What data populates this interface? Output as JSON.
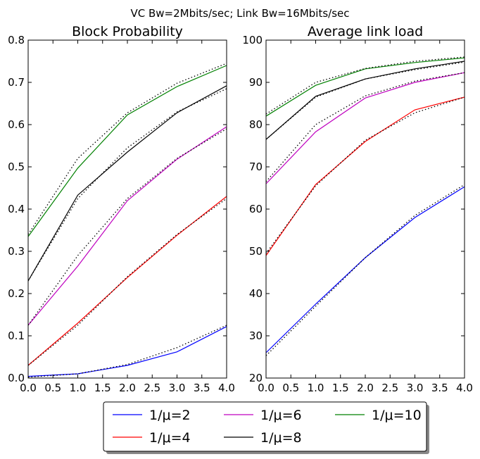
{
  "suptitle": "VC Bw=2Mbits/sec; Link Bw=16Mbits/sec",
  "legend": {
    "placement": "bottom-center",
    "entries": [
      {
        "label": "1/μ=2",
        "color": "#0000ff"
      },
      {
        "label": "1/μ=4",
        "color": "#ff0000"
      },
      {
        "label": "1/μ=6",
        "color": "#bf00bf"
      },
      {
        "label": "1/μ=8",
        "color": "#000000"
      },
      {
        "label": "1/μ=10",
        "color": "#008000"
      }
    ]
  },
  "chart_data": [
    {
      "type": "line",
      "title": "Block Probability",
      "xlabel": "",
      "ylabel": "",
      "xlim": [
        0,
        4
      ],
      "ylim": [
        0,
        0.8
      ],
      "xticks": [
        "0.0",
        "0.5",
        "1.0",
        "1.5",
        "2.0",
        "2.5",
        "3.0",
        "3.5",
        "4.0"
      ],
      "yticks": [
        "0.0",
        "0.1",
        "0.2",
        "0.3",
        "0.4",
        "0.5",
        "0.6",
        "0.7",
        "0.8"
      ],
      "grid": false,
      "x": [
        0,
        1,
        2,
        3,
        4
      ],
      "series": [
        {
          "color": "#0000ff",
          "style": "solid",
          "values": [
            0.004,
            0.01,
            0.03,
            0.062,
            0.122
          ]
        },
        {
          "color": "#000000",
          "style": "dotted",
          "values": [
            0.002,
            0.01,
            0.032,
            0.072,
            0.125
          ]
        },
        {
          "color": "#ff0000",
          "style": "solid",
          "values": [
            0.03,
            0.13,
            0.238,
            0.338,
            0.43
          ]
        },
        {
          "color": "#000000",
          "style": "dotted",
          "values": [
            0.03,
            0.125,
            0.24,
            0.34,
            0.425
          ]
        },
        {
          "color": "#bf00bf",
          "style": "solid",
          "values": [
            0.125,
            0.265,
            0.42,
            0.518,
            0.595
          ]
        },
        {
          "color": "#000000",
          "style": "dotted",
          "values": [
            0.125,
            0.29,
            0.425,
            0.52,
            0.59
          ]
        },
        {
          "color": "#000000",
          "style": "solid",
          "values": [
            0.23,
            0.433,
            0.535,
            0.628,
            0.692
          ]
        },
        {
          "color": "#000000",
          "style": "dotted",
          "values": [
            0.23,
            0.425,
            0.545,
            0.63,
            0.685
          ]
        },
        {
          "color": "#008000",
          "style": "solid",
          "values": [
            0.335,
            0.497,
            0.623,
            0.69,
            0.74
          ]
        },
        {
          "color": "#000000",
          "style": "dotted",
          "values": [
            0.34,
            0.52,
            0.628,
            0.698,
            0.745
          ]
        }
      ]
    },
    {
      "type": "line",
      "title": "Average link load",
      "xlabel": "",
      "ylabel": "",
      "xlim": [
        0,
        4
      ],
      "ylim": [
        20,
        100
      ],
      "xticks": [
        "0.0",
        "0.5",
        "1.0",
        "1.5",
        "2.0",
        "2.5",
        "3.0",
        "3.5",
        "4.0"
      ],
      "yticks": [
        "20",
        "30",
        "40",
        "50",
        "60",
        "70",
        "80",
        "90",
        "100"
      ],
      "grid": false,
      "x": [
        0,
        1,
        2,
        3,
        4
      ],
      "series": [
        {
          "color": "#0000ff",
          "style": "solid",
          "values": [
            26.0,
            37.5,
            48.5,
            58.0,
            65.3
          ]
        },
        {
          "color": "#000000",
          "style": "dotted",
          "values": [
            25.3,
            37.0,
            48.5,
            58.5,
            65.8
          ]
        },
        {
          "color": "#ff0000",
          "style": "solid",
          "values": [
            49.0,
            65.8,
            76.0,
            83.5,
            86.5
          ]
        },
        {
          "color": "#000000",
          "style": "dotted",
          "values": [
            49.5,
            65.5,
            76.3,
            82.8,
            86.5
          ]
        },
        {
          "color": "#bf00bf",
          "style": "solid",
          "values": [
            66.0,
            78.3,
            86.3,
            90.0,
            92.3
          ]
        },
        {
          "color": "#000000",
          "style": "dotted",
          "values": [
            66.5,
            80.0,
            86.8,
            90.3,
            92.3
          ]
        },
        {
          "color": "#000000",
          "style": "solid",
          "values": [
            76.5,
            86.7,
            90.8,
            93.2,
            95.0
          ]
        },
        {
          "color": "#000000",
          "style": "dotted",
          "values": [
            76.5,
            86.5,
            90.8,
            93.0,
            94.8
          ]
        },
        {
          "color": "#008000",
          "style": "solid",
          "values": [
            82.0,
            89.3,
            93.2,
            94.7,
            95.8
          ]
        },
        {
          "color": "#000000",
          "style": "dotted",
          "values": [
            82.5,
            90.0,
            93.3,
            95.0,
            96.0
          ]
        }
      ]
    }
  ]
}
